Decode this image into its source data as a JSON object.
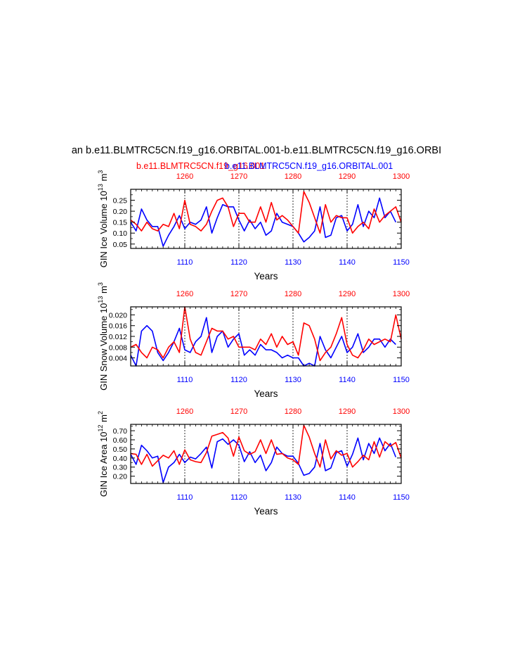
{
  "title": "an b.e11.BLMTRC5CN.f19_g16.ORBITAL.001-b.e11.BLMTRC5CN.f19_g16.ORBI",
  "legend": {
    "red_label": "b.e11.BLMTRC5CN.f19_g16.001",
    "blue_label": "b.e11.BLMTRC5CN.f19_g16.ORBITAL.001"
  },
  "colors": {
    "red": "#ff0000",
    "blue": "#0000ff",
    "axis": "#000000"
  },
  "chart_data": [
    {
      "type": "line",
      "ylabel": "GIN Ice Volume 10",
      "ylabel_sup": "13",
      "ylabel_unit": " m",
      "ylabel_unit_sup": "3",
      "xlabel": "Years",
      "bottom_axis": {
        "range": [
          1100,
          1150
        ],
        "ticks": [
          1110,
          1120,
          1130,
          1140,
          1150
        ],
        "color": "#0000ff"
      },
      "top_axis": {
        "range": [
          1250,
          1300
        ],
        "ticks": [
          1260,
          1270,
          1280,
          1290,
          1300
        ],
        "color": "#ff0000"
      },
      "ylim": [
        0.03,
        0.3
      ],
      "yticks": [
        0.05,
        0.1,
        0.15,
        0.2,
        0.25
      ],
      "yticklabels": [
        "0.05",
        "0.10",
        "0.15",
        "0.20",
        "0.25"
      ],
      "series": [
        {
          "color": "#0000ff",
          "x_start": 1100,
          "values": [
            0.15,
            0.11,
            0.21,
            0.16,
            0.13,
            0.13,
            0.04,
            0.09,
            0.13,
            0.18,
            0.12,
            0.15,
            0.14,
            0.16,
            0.22,
            0.1,
            0.17,
            0.23,
            0.22,
            0.22,
            0.16,
            0.11,
            0.16,
            0.12,
            0.15,
            0.09,
            0.11,
            0.19,
            0.15,
            0.14,
            0.13,
            0.1,
            0.06,
            0.08,
            0.11,
            0.22,
            0.08,
            0.09,
            0.17,
            0.18,
            0.11,
            0.14,
            0.23,
            0.13,
            0.2,
            0.17,
            0.26,
            0.17,
            0.2,
            0.15
          ]
        },
        {
          "color": "#ff0000",
          "x_start": 1250,
          "values": [
            0.16,
            0.14,
            0.11,
            0.15,
            0.12,
            0.11,
            0.14,
            0.13,
            0.19,
            0.12,
            0.25,
            0.14,
            0.13,
            0.11,
            0.14,
            0.2,
            0.25,
            0.26,
            0.22,
            0.13,
            0.19,
            0.19,
            0.15,
            0.15,
            0.22,
            0.15,
            0.24,
            0.16,
            0.18,
            0.16,
            0.13,
            0.1,
            0.29,
            0.24,
            0.17,
            0.1,
            0.23,
            0.15,
            0.18,
            0.17,
            0.17,
            0.1,
            0.13,
            0.15,
            0.12,
            0.21,
            0.15,
            0.18,
            0.2,
            0.22,
            0.15
          ]
        }
      ]
    },
    {
      "type": "line",
      "ylabel": "GIN Snow Volume 10",
      "ylabel_sup": "13",
      "ylabel_unit": " m",
      "ylabel_unit_sup": "3",
      "xlabel": "Years",
      "bottom_axis": {
        "range": [
          1100,
          1150
        ],
        "ticks": [
          1110,
          1120,
          1130,
          1140,
          1150
        ],
        "color": "#0000ff"
      },
      "top_axis": {
        "range": [
          1250,
          1300
        ],
        "ticks": [
          1260,
          1270,
          1280,
          1290,
          1300
        ],
        "color": "#ff0000"
      },
      "ylim": [
        0.001,
        0.023
      ],
      "yticks": [
        0.004,
        0.008,
        0.012,
        0.016,
        0.02
      ],
      "yticklabels": [
        "0.004",
        "0.008",
        "0.012",
        "0.016",
        "0.020"
      ],
      "series": [
        {
          "color": "#0000ff",
          "x_start": 1100,
          "values": [
            0.005,
            0.001,
            0.014,
            0.016,
            0.014,
            0.006,
            0.003,
            0.006,
            0.01,
            0.015,
            0.007,
            0.006,
            0.01,
            0.012,
            0.019,
            0.006,
            0.012,
            0.014,
            0.008,
            0.011,
            0.013,
            0.005,
            0.007,
            0.005,
            0.009,
            0.007,
            0.007,
            0.006,
            0.004,
            0.005,
            0.004,
            0.004,
            0.001,
            0.002,
            0.001,
            0.012,
            0.007,
            0.004,
            0.008,
            0.012,
            0.006,
            0.008,
            0.013,
            0.006,
            0.008,
            0.011,
            0.011,
            0.008,
            0.011,
            0.009
          ]
        },
        {
          "color": "#ff0000",
          "x_start": 1250,
          "values": [
            0.008,
            0.009,
            0.006,
            0.004,
            0.008,
            0.007,
            0.004,
            0.008,
            0.01,
            0.006,
            0.023,
            0.011,
            0.006,
            0.005,
            0.01,
            0.015,
            0.014,
            0.014,
            0.011,
            0.012,
            0.008,
            0.008,
            0.008,
            0.007,
            0.011,
            0.009,
            0.013,
            0.008,
            0.012,
            0.009,
            0.01,
            0.005,
            0.017,
            0.016,
            0.011,
            0.003,
            0.006,
            0.008,
            0.013,
            0.019,
            0.009,
            0.005,
            0.004,
            0.007,
            0.011,
            0.009,
            0.01,
            0.011,
            0.01,
            0.02,
            0.011
          ]
        }
      ]
    },
    {
      "type": "line",
      "ylabel": "GIN Ice Area 10",
      "ylabel_sup": "12",
      "ylabel_unit": " m",
      "ylabel_unit_sup": "2",
      "xlabel": "Years",
      "bottom_axis": {
        "range": [
          1100,
          1150
        ],
        "ticks": [
          1110,
          1120,
          1130,
          1140,
          1150
        ],
        "color": "#0000ff"
      },
      "top_axis": {
        "range": [
          1250,
          1300
        ],
        "ticks": [
          1260,
          1270,
          1280,
          1290,
          1300
        ],
        "color": "#ff0000"
      },
      "ylim": [
        0.12,
        0.77
      ],
      "yticks": [
        0.2,
        0.3,
        0.4,
        0.5,
        0.6,
        0.7
      ],
      "yticklabels": [
        "0.20",
        "0.30",
        "0.40",
        "0.50",
        "0.60",
        "0.70"
      ],
      "series": [
        {
          "color": "#0000ff",
          "x_start": 1100,
          "values": [
            0.44,
            0.33,
            0.54,
            0.48,
            0.4,
            0.42,
            0.13,
            0.3,
            0.35,
            0.44,
            0.35,
            0.41,
            0.39,
            0.45,
            0.52,
            0.29,
            0.58,
            0.61,
            0.55,
            0.6,
            0.54,
            0.36,
            0.47,
            0.35,
            0.43,
            0.26,
            0.35,
            0.52,
            0.45,
            0.42,
            0.42,
            0.34,
            0.21,
            0.23,
            0.3,
            0.56,
            0.26,
            0.29,
            0.46,
            0.48,
            0.31,
            0.44,
            0.62,
            0.38,
            0.56,
            0.45,
            0.62,
            0.48,
            0.56,
            0.41
          ]
        },
        {
          "color": "#ff0000",
          "x_start": 1250,
          "values": [
            0.45,
            0.44,
            0.33,
            0.44,
            0.31,
            0.37,
            0.43,
            0.4,
            0.48,
            0.33,
            0.49,
            0.38,
            0.36,
            0.35,
            0.46,
            0.64,
            0.66,
            0.68,
            0.62,
            0.42,
            0.63,
            0.48,
            0.44,
            0.47,
            0.6,
            0.45,
            0.6,
            0.44,
            0.45,
            0.4,
            0.38,
            0.33,
            0.76,
            0.63,
            0.45,
            0.3,
            0.6,
            0.39,
            0.48,
            0.43,
            0.45,
            0.3,
            0.36,
            0.43,
            0.38,
            0.58,
            0.41,
            0.58,
            0.53,
            0.57,
            0.4
          ]
        }
      ]
    }
  ]
}
